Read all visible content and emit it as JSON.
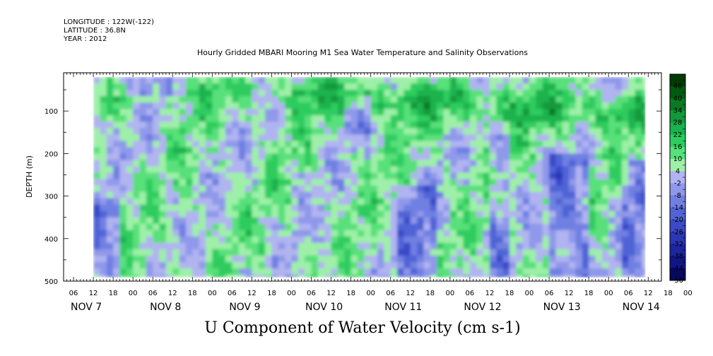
{
  "header": {
    "longitude": "LONGITUDE : 122W(-122)",
    "latitude": "LATITUDE : 36.8N",
    "year": "YEAR : 2012"
  },
  "chart_data": {
    "type": "heatmap",
    "title": "Hourly Gridded MBARI Mooring M1 Sea Water Temperature and Salinity Observations",
    "bottom_title": "U Component of Water Velocity (cm s-1)",
    "ylabel": "DEPTH (m)",
    "xlabel": "",
    "y_ticks": [
      100,
      200,
      300,
      400,
      500
    ],
    "y_range_m": [
      10,
      500
    ],
    "y_inverted": true,
    "x_range_hours_from_nov7_00": [
      -9,
      172
    ],
    "data_extent_hours_from_nov7_00": [
      0,
      167
    ],
    "data_depth_range_m": [
      20,
      490
    ],
    "x_hour_tick_labels": [
      "06",
      "12",
      "18",
      "00",
      "06",
      "12",
      "18",
      "00",
      "06",
      "12",
      "18",
      "00",
      "06",
      "12",
      "18",
      "00",
      "06",
      "12",
      "18",
      "00",
      "06",
      "12",
      "18",
      "00",
      "06",
      "12",
      "18",
      "00",
      "06",
      "12",
      "18",
      "00"
    ],
    "x_day_labels": [
      "NOV  7",
      "NOV  8",
      "NOV  9",
      "NOV 10",
      "NOV 11",
      "NOV 12",
      "NOV 13",
      "NOV 14"
    ],
    "colorbar": {
      "labels": [
        "46",
        "40",
        "34",
        "28",
        "22",
        "16",
        "10",
        "4",
        "-2",
        "-8",
        "-14",
        "-20",
        "-26",
        "-32",
        "-38",
        "-44",
        "-50"
      ],
      "range": [
        -50,
        52
      ],
      "colors": [
        "#003a00",
        "#005a10",
        "#0a7a22",
        "#12993a",
        "#1ab24e",
        "#2ecc5f",
        "#58e07a",
        "#9ef0a8",
        "#b0b4f0",
        "#8f98ea",
        "#7080e2",
        "#5064d6",
        "#3a4ac8",
        "#2a36b8",
        "#1c26a2",
        "#101686",
        "#08085e"
      ]
    },
    "anomaly_pattern": {
      "description_values_cm_s": "U velocity ranges roughly -15 to +30 cm/s",
      "upper_band_trend": "positive U velocity strengthens toward Nov 12-13 near 50-150 m",
      "deep_negative_patches_days": [
        "NOV 7",
        "NOV 11",
        "NOV 12",
        "NOV 13"
      ]
    }
  }
}
